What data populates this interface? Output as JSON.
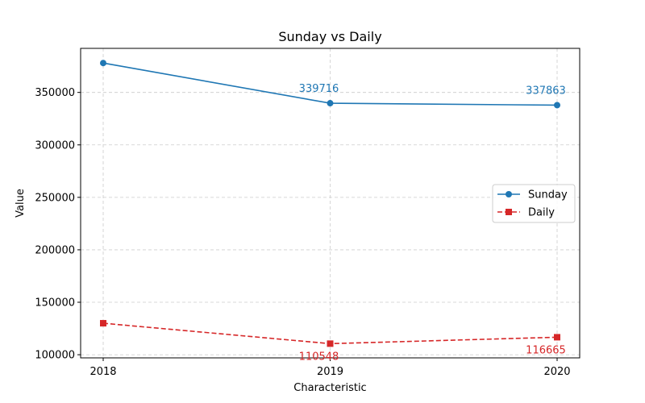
{
  "chart_data": {
    "type": "line",
    "title": "Sunday vs Daily",
    "xlabel": "Characteristic",
    "ylabel": "Value",
    "categories": [
      "2018",
      "2019",
      "2020"
    ],
    "ylim": [
      97000,
      392000
    ],
    "yticks": [
      100000,
      150000,
      200000,
      250000,
      300000,
      350000
    ],
    "grid": true,
    "legend_position": "center-right",
    "series": [
      {
        "name": "Sunday",
        "values": [
          378000,
          339716,
          337863
        ],
        "color": "#1f77b4",
        "line_style": "solid",
        "marker": "circle",
        "data_labels": [
          null,
          "339716",
          "337863"
        ]
      },
      {
        "name": "Daily",
        "values": [
          130000,
          110548,
          116665
        ],
        "color": "#d62728",
        "line_style": "dashed",
        "marker": "square",
        "data_labels": [
          null,
          "110548",
          "116665"
        ]
      }
    ]
  }
}
